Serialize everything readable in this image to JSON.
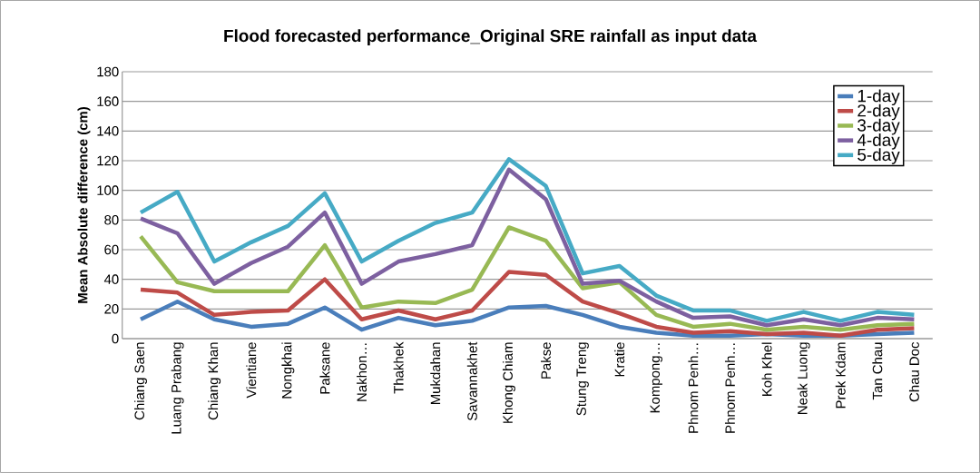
{
  "chart_data": {
    "type": "line",
    "title": "Flood forecasted performance_Original SRE rainfall as input data",
    "ylabel": "Mean Absolute difference (cm)",
    "categories": [
      "Chiang Saen",
      "Luang Prabang",
      "Chiang Khan",
      "Vientiane",
      "Nongkhai",
      "Paksane",
      "Nakhon…",
      "Thakhek",
      "Mukdahan",
      "Savannakhet",
      "Khong Chiam",
      "Pakse",
      "Stung Treng",
      "Kratie",
      "Kompong…",
      "Phnom Penh…",
      "Phnom Penh…",
      "Koh Khel",
      "Neak Luong",
      "Prek Kdam",
      "Tan Chau",
      "Chau Doc"
    ],
    "series": [
      {
        "name": "1-day",
        "color": "#4a7ebb",
        "values": [
          13,
          25,
          13,
          8,
          10,
          21,
          6,
          14,
          9,
          12,
          21,
          22,
          16,
          8,
          4,
          2,
          2,
          3,
          2,
          2,
          3,
          4
        ]
      },
      {
        "name": "2-day",
        "color": "#be4b48",
        "values": [
          33,
          31,
          16,
          18,
          19,
          40,
          13,
          19,
          13,
          19,
          45,
          43,
          25,
          17,
          8,
          4,
          5,
          3,
          4,
          2,
          6,
          7
        ]
      },
      {
        "name": "3-day",
        "color": "#98b954",
        "values": [
          69,
          38,
          32,
          32,
          32,
          63,
          21,
          25,
          24,
          33,
          75,
          66,
          34,
          38,
          16,
          8,
          10,
          6,
          8,
          6,
          9,
          10
        ]
      },
      {
        "name": "4-day",
        "color": "#7d60a0",
        "values": [
          81,
          71,
          37,
          51,
          62,
          85,
          37,
          52,
          57,
          63,
          114,
          94,
          37,
          39,
          25,
          14,
          15,
          9,
          13,
          9,
          14,
          13
        ]
      },
      {
        "name": "5-day",
        "color": "#46aac5",
        "values": [
          85,
          99,
          52,
          65,
          76,
          98,
          52,
          66,
          78,
          85,
          121,
          103,
          44,
          49,
          29,
          19,
          19,
          12,
          18,
          12,
          18,
          16
        ]
      }
    ],
    "ylim": [
      0,
      180
    ],
    "yticks": [
      0,
      20,
      40,
      60,
      80,
      100,
      120,
      140,
      160,
      180
    ],
    "grid": "y",
    "legend": "top right",
    "marker": "none",
    "line_style": "solid"
  }
}
